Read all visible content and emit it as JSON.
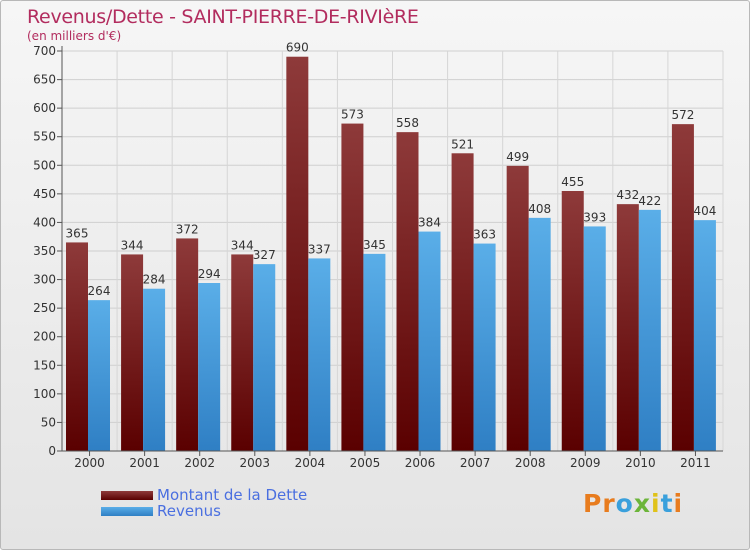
{
  "title": "Revenus/Dette - SAINT-PIERRE-DE-RIVIèRE",
  "subtitle": "(en milliers d'€)",
  "chart_data": {
    "type": "bar",
    "categories": [
      "2000",
      "2001",
      "2002",
      "2003",
      "2004",
      "2005",
      "2006",
      "2007",
      "2008",
      "2009",
      "2010",
      "2011"
    ],
    "series": [
      {
        "name": "Montant de la Dette",
        "values": [
          365,
          344,
          372,
          344,
          690,
          573,
          558,
          521,
          499,
          455,
          432,
          572
        ],
        "color": "#8b1a1a"
      },
      {
        "name": "Revenus",
        "values": [
          264,
          284,
          294,
          327,
          337,
          345,
          384,
          363,
          408,
          393,
          422,
          404
        ],
        "color": "#4a9ee0"
      }
    ],
    "ylim": [
      0,
      700
    ],
    "yticks": [
      0,
      50,
      100,
      150,
      200,
      250,
      300,
      350,
      400,
      450,
      500,
      550,
      600,
      650,
      700
    ],
    "grid": true,
    "legend_position": "bottom-left"
  },
  "legend": {
    "debt_label": "Montant de la Dette",
    "revenue_label": "Revenus"
  },
  "logo": {
    "letters": [
      "P",
      "r",
      "o",
      "x",
      "i",
      "t",
      "i"
    ],
    "colors": [
      "#e87c1e",
      "#e87c1e",
      "#3aa0dc",
      "#6cb53a",
      "#e0c21a",
      "#3aa0dc",
      "#e87c1e"
    ]
  }
}
